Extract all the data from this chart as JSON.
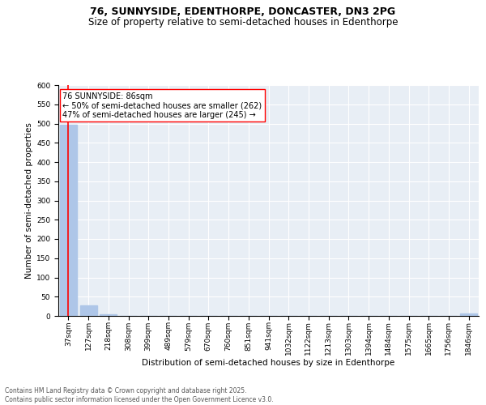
{
  "title1": "76, SUNNYSIDE, EDENTHORPE, DONCASTER, DN3 2PG",
  "title2": "Size of property relative to semi-detached houses in Edenthorpe",
  "xlabel": "Distribution of semi-detached houses by size in Edenthorpe",
  "ylabel": "Number of semi-detached properties",
  "categories": [
    "37sqm",
    "127sqm",
    "218sqm",
    "308sqm",
    "399sqm",
    "489sqm",
    "579sqm",
    "670sqm",
    "760sqm",
    "851sqm",
    "941sqm",
    "1032sqm",
    "1122sqm",
    "1213sqm",
    "1303sqm",
    "1394sqm",
    "1484sqm",
    "1575sqm",
    "1665sqm",
    "1756sqm",
    "1846sqm"
  ],
  "values": [
    497,
    27,
    5,
    0,
    0,
    0,
    0,
    0,
    0,
    0,
    0,
    0,
    0,
    0,
    0,
    0,
    0,
    0,
    0,
    0,
    7
  ],
  "bar_color": "#aec6e8",
  "vline_color": "red",
  "annotation_text": "76 SUNNYSIDE: 86sqm\n← 50% of semi-detached houses are smaller (262)\n47% of semi-detached houses are larger (245) →",
  "annotation_box_color": "white",
  "annotation_box_edgecolor": "red",
  "ylim": [
    0,
    600
  ],
  "yticks": [
    0,
    50,
    100,
    150,
    200,
    250,
    300,
    350,
    400,
    450,
    500,
    550,
    600
  ],
  "background_color": "#e8eef5",
  "grid_color": "white",
  "footer_text": "Contains HM Land Registry data © Crown copyright and database right 2025.\nContains public sector information licensed under the Open Government Licence v3.0.",
  "title_fontsize": 9,
  "subtitle_fontsize": 8.5,
  "tick_fontsize": 6.5,
  "ylabel_fontsize": 7.5,
  "xlabel_fontsize": 7.5,
  "annotation_fontsize": 7,
  "footer_fontsize": 5.5
}
